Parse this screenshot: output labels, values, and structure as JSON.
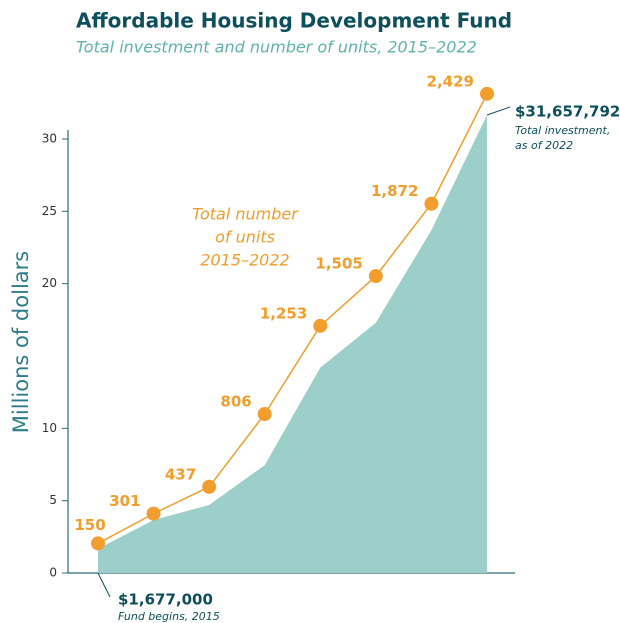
{
  "chart_data": {
    "type": "area-line",
    "title": "Affordable Housing Development Fund",
    "subtitle": "Total investment and number of units, 2015–2022",
    "y_label": "Millions of dollars",
    "ylim": [
      0,
      30
    ],
    "yticks": [
      0,
      5,
      10,
      20,
      25,
      30
    ],
    "y2lim": [
      0,
      2200
    ],
    "series": [
      {
        "name": "Total investment",
        "color": "#9ccfc9",
        "values": [
          1.677,
          3.66,
          4.7,
          7.46,
          14.2,
          17.3,
          23.7,
          31.657792
        ],
        "value_labels": [
          "$1,677,000",
          null,
          null,
          null,
          null,
          null,
          null,
          "$31,657,792"
        ]
      },
      {
        "name": "Total number of units",
        "color": "#f29e2e",
        "axis": "y2",
        "values": [
          150,
          301,
          437,
          806,
          1253,
          1505,
          1872,
          2429
        ],
        "value_labels": [
          "150",
          "301",
          "437",
          "806",
          "1,253",
          "1,505",
          "1,872",
          "2,429"
        ]
      }
    ],
    "annotations": {
      "start": [
        "Fund begins, 2015"
      ],
      "end": [
        "Total investment,",
        "as of 2022"
      ],
      "units": [
        "Total number",
        "of units",
        "2015–2022"
      ]
    }
  }
}
